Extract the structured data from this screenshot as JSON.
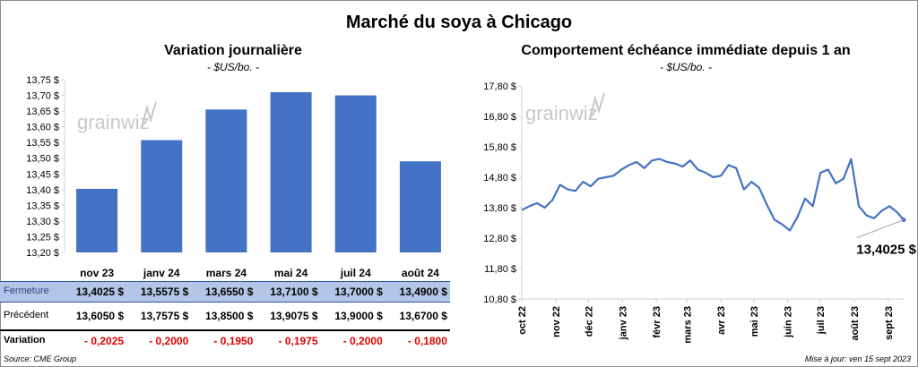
{
  "main_title": "Marché du soya à Chicago",
  "colors": {
    "bar": "#4472c4",
    "line": "#4472c4",
    "highlight_row": "#b4c6e7",
    "negative": "#e00000"
  },
  "watermark": "grainwiz",
  "left_chart": {
    "title": "Variation  journalière",
    "subtitle": "- $US/bo. -"
  },
  "right_chart": {
    "title": "Comportement  échéance immédiate depuis 1 an",
    "subtitle": "- $US/bo. -",
    "last_value_label": "13,4025 $"
  },
  "table": {
    "rows": [
      {
        "label": "Fermeture",
        "values": [
          "13,4025  $",
          "13,5575  $",
          "13,6550  $",
          "13,7100  $",
          "13,7000  $",
          "13,4900  $"
        ]
      },
      {
        "label": "Précédent",
        "values": [
          "13,6050  $",
          "13,7575  $",
          "13,8500  $",
          "13,9075  $",
          "13,9000  $",
          "13,6700  $"
        ]
      },
      {
        "label": "Variation",
        "values": [
          "- 0,2025",
          "- 0,2000",
          "- 0,1950",
          "- 0,1975",
          "- 0,2000",
          "- 0,1800"
        ]
      }
    ]
  },
  "footer": {
    "source": "Source: CME Group",
    "updated": "Mise à jour: ven 15 sept 2023"
  },
  "chart_data": [
    {
      "type": "bar",
      "categories": [
        "nov 23",
        "janv 24",
        "mars 24",
        "mai 24",
        "juil 24",
        "août 24"
      ],
      "values": [
        13.4025,
        13.5575,
        13.655,
        13.71,
        13.7,
        13.49
      ],
      "title": "Variation  journalière",
      "ylabel": "- $US/bo. -",
      "ylim": [
        13.2,
        13.75
      ],
      "yticks": [
        13.2,
        13.25,
        13.3,
        13.35,
        13.4,
        13.45,
        13.5,
        13.55,
        13.6,
        13.65,
        13.7,
        13.75
      ],
      "ytick_labels": [
        "13,20 $",
        "13,25 $",
        "13,30 $",
        "13,35 $",
        "13,40 $",
        "13,45 $",
        "13,50 $",
        "13,55 $",
        "13,60 $",
        "13,65 $",
        "13,70 $",
        "13,75 $"
      ],
      "grid": false
    },
    {
      "type": "line",
      "title": "Comportement  échéance immédiate depuis 1 an",
      "ylabel": "- $US/bo. -",
      "ylim": [
        10.8,
        17.8
      ],
      "yticks": [
        10.8,
        11.8,
        12.8,
        13.8,
        14.8,
        15.8,
        16.8,
        17.8
      ],
      "ytick_labels": [
        "10,80 $",
        "11,80 $",
        "12,80 $",
        "13,80 $",
        "14,80 $",
        "15,80 $",
        "16,80 $",
        "17,80 $"
      ],
      "xlim": [
        "2022-10-01",
        "2023-09-15"
      ],
      "xticks": [
        "2022-10-01",
        "2022-11-01",
        "2022-12-01",
        "2023-01-01",
        "2023-02-01",
        "2023-03-01",
        "2023-04-01",
        "2023-05-01",
        "2023-06-01",
        "2023-07-01",
        "2023-08-01",
        "2023-09-01"
      ],
      "xtick_labels": [
        "oct 22",
        "nov 22",
        "déc 22",
        "janv 23",
        "févr 23",
        "mars 23",
        "avr 23",
        "mai 23",
        "juin 23",
        "juil 23",
        "août 23",
        "sept 23"
      ],
      "series": [
        {
          "x": [
            "2022-10-01",
            "2022-10-08",
            "2022-10-15",
            "2022-10-22",
            "2022-10-29",
            "2022-11-05",
            "2022-11-12",
            "2022-11-19",
            "2022-11-26",
            "2022-12-03",
            "2022-12-10",
            "2022-12-17",
            "2022-12-24",
            "2022-12-31",
            "2023-01-07",
            "2023-01-14",
            "2023-01-21",
            "2023-01-28",
            "2023-02-04",
            "2023-02-11",
            "2023-02-18",
            "2023-02-25",
            "2023-03-04",
            "2023-03-11",
            "2023-03-18",
            "2023-03-25",
            "2023-04-01",
            "2023-04-08",
            "2023-04-15",
            "2023-04-22",
            "2023-04-29",
            "2023-05-06",
            "2023-05-13",
            "2023-05-20",
            "2023-05-27",
            "2023-06-03",
            "2023-06-10",
            "2023-06-17",
            "2023-06-24",
            "2023-07-01",
            "2023-07-08",
            "2023-07-15",
            "2023-07-22",
            "2023-07-29",
            "2023-08-05",
            "2023-08-12",
            "2023-08-19",
            "2023-08-26",
            "2023-09-02",
            "2023-09-09",
            "2023-09-15"
          ],
          "values": [
            13.72,
            13.85,
            13.95,
            13.8,
            14.05,
            14.55,
            14.4,
            14.35,
            14.65,
            14.5,
            14.75,
            14.8,
            14.85,
            15.05,
            15.2,
            15.3,
            15.1,
            15.35,
            15.4,
            15.3,
            15.25,
            15.15,
            15.35,
            15.05,
            14.95,
            14.8,
            14.85,
            15.2,
            15.1,
            14.4,
            14.65,
            14.45,
            13.9,
            13.4,
            13.25,
            13.05,
            13.5,
            14.1,
            13.85,
            14.95,
            15.05,
            14.6,
            14.75,
            15.4,
            13.85,
            13.55,
            13.45,
            13.7,
            13.85,
            13.65,
            13.4
          ]
        }
      ],
      "annotation": "13,4025 $",
      "grid": false
    }
  ]
}
